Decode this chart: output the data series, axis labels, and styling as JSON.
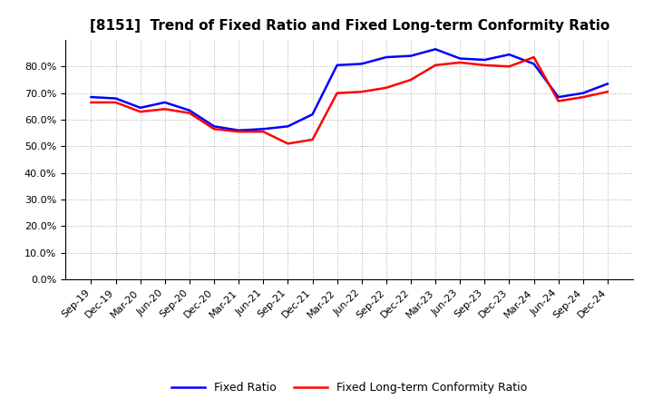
{
  "title": "[8151]  Trend of Fixed Ratio and Fixed Long-term Conformity Ratio",
  "x_labels": [
    "Sep-19",
    "Dec-19",
    "Mar-20",
    "Jun-20",
    "Sep-20",
    "Dec-20",
    "Mar-21",
    "Jun-21",
    "Sep-21",
    "Dec-21",
    "Mar-22",
    "Jun-22",
    "Sep-22",
    "Dec-22",
    "Mar-23",
    "Jun-23",
    "Sep-23",
    "Dec-23",
    "Mar-24",
    "Jun-24",
    "Sep-24",
    "Dec-24"
  ],
  "fixed_ratio": [
    68.5,
    68.0,
    64.5,
    66.5,
    63.5,
    57.5,
    56.0,
    56.5,
    57.5,
    62.0,
    80.5,
    81.0,
    83.5,
    84.0,
    86.5,
    83.0,
    82.5,
    84.5,
    81.0,
    68.5,
    70.0,
    73.5
  ],
  "fixed_lt_ratio": [
    66.5,
    66.5,
    63.0,
    64.0,
    62.5,
    56.5,
    55.5,
    55.5,
    51.0,
    52.5,
    70.0,
    70.5,
    72.0,
    75.0,
    80.5,
    81.5,
    80.5,
    80.0,
    83.5,
    67.0,
    68.5,
    70.5
  ],
  "fixed_ratio_color": "#0000FF",
  "fixed_lt_ratio_color": "#FF0000",
  "ylim": [
    0,
    90
  ],
  "yticks": [
    0,
    10,
    20,
    30,
    40,
    50,
    60,
    70,
    80
  ],
  "bg_color": "#FFFFFF",
  "plot_bg_color": "#FFFFFF",
  "grid_color": "#AAAAAA",
  "title_fontsize": 11,
  "tick_fontsize": 8,
  "legend_fixed_ratio": "Fixed Ratio",
  "legend_fixed_lt_ratio": "Fixed Long-term Conformity Ratio"
}
